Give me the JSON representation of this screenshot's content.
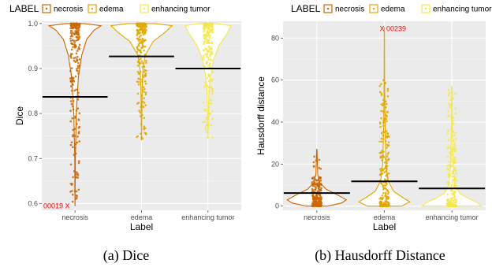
{
  "chart_data": [
    {
      "type": "violin",
      "panel_caption": "(a) Dice",
      "legend_title": "LABEL",
      "xlabel": "Label",
      "ylabel": "Dice",
      "ylim": [
        0.585,
        1.005
      ],
      "yticks": [
        0.6,
        0.7,
        0.8,
        0.9,
        1.0
      ],
      "ytick_labels": [
        "0.6",
        "0.7",
        "0.8",
        "0.9",
        "1.0"
      ],
      "categories": [
        "necrosis",
        "edema",
        "enhancing tumor"
      ],
      "colors": [
        "#cc6600",
        "#e0a800",
        "#f5e84a"
      ],
      "means": [
        0.837,
        0.927,
        0.9
      ],
      "annotation": {
        "text": "00019 X",
        "category": "necrosis",
        "y": 0.595
      },
      "grid": true,
      "legend_position": "top"
    },
    {
      "type": "violin",
      "panel_caption": "(b) Hausdorff Distance",
      "legend_title": "LABEL",
      "xlabel": "Label",
      "ylabel": "Hausdorff distance",
      "ylim": [
        -2,
        88
      ],
      "yticks": [
        0,
        20,
        40,
        60,
        80
      ],
      "ytick_labels": [
        "0",
        "20",
        "40",
        "60",
        "80"
      ],
      "categories": [
        "necrosis",
        "edema",
        "enhancing tumor"
      ],
      "colors": [
        "#cc6600",
        "#e0a800",
        "#f5e84a"
      ],
      "means": [
        6.2,
        11.8,
        8.4
      ],
      "annotation": {
        "text": "X 00239",
        "category": "edema",
        "y": 84.5
      },
      "grid": true,
      "legend_position": "top"
    }
  ]
}
